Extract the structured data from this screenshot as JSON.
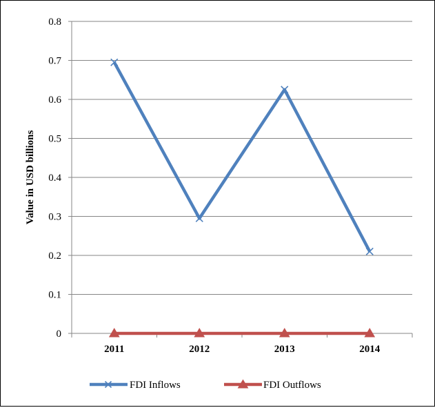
{
  "chart_data": {
    "type": "line",
    "title": "",
    "xlabel": "",
    "ylabel": "Value in USD billions",
    "categories": [
      "2011",
      "2012",
      "2013",
      "2014"
    ],
    "ylim": [
      0,
      0.8
    ],
    "yticks": [
      "0",
      "0.1",
      "0.2",
      "0.3",
      "0.4",
      "0.5",
      "0.6",
      "0.7",
      "0.8"
    ],
    "grid": "horizontal",
    "legend_position": "bottom",
    "series": [
      {
        "name": "FDI Inflows",
        "values": [
          0.695,
          0.295,
          0.625,
          0.21
        ],
        "color": "#4f81bd",
        "marker": "x"
      },
      {
        "name": "FDI Outflows",
        "values": [
          0,
          0,
          0,
          0
        ],
        "color": "#c0504d",
        "marker": "triangle"
      }
    ]
  }
}
